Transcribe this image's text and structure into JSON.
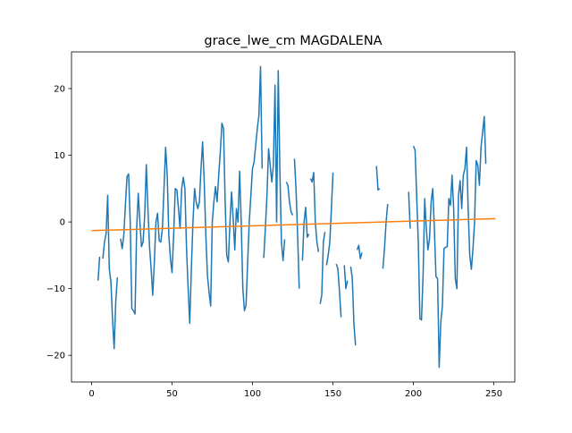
{
  "chart_data": {
    "type": "line",
    "title": "grace_lwe_cm MAGDALENA",
    "xlabel": "",
    "ylabel": "",
    "xlim": [
      -12.5,
      263
    ],
    "ylim": [
      -24,
      25.5
    ],
    "xticks": [
      0,
      50,
      100,
      150,
      200,
      250
    ],
    "yticks": [
      -20,
      -10,
      0,
      10,
      20
    ],
    "grid": false,
    "legend": "none",
    "series": [
      {
        "color": "#1f77b4",
        "segments": [
          [
            [
              4,
              -8.8
            ],
            [
              5,
              -5.2
            ]
          ],
          [
            [
              7,
              -5.5
            ],
            [
              8,
              -3
            ],
            [
              9,
              -1.8
            ],
            [
              10,
              4
            ],
            [
              11,
              -7
            ],
            [
              12,
              -9
            ],
            [
              13,
              -14.5
            ],
            [
              14,
              -19
            ],
            [
              15,
              -12
            ],
            [
              16,
              -8.3
            ]
          ],
          [
            [
              18,
              -2.5
            ],
            [
              19,
              -4
            ],
            [
              20,
              -2
            ],
            [
              21,
              2.5
            ],
            [
              22,
              6.8
            ],
            [
              23,
              7.2
            ],
            [
              24,
              0
            ],
            [
              25,
              -13
            ],
            [
              26,
              -13.3
            ],
            [
              27,
              -13.8
            ],
            [
              28,
              -1
            ],
            [
              29,
              4.3
            ],
            [
              30,
              0
            ],
            [
              31,
              -3.7
            ],
            [
              32,
              -3
            ],
            [
              33,
              1
            ],
            [
              34,
              8.6
            ],
            [
              35,
              2
            ],
            [
              36,
              -3.7
            ],
            [
              37,
              -7
            ],
            [
              38,
              -11
            ],
            [
              39,
              -6
            ],
            [
              40,
              0
            ],
            [
              41,
              1.3
            ],
            [
              42,
              -2.8
            ],
            [
              43,
              -3
            ],
            [
              44,
              -1
            ],
            [
              45,
              5
            ],
            [
              46,
              11.2
            ],
            [
              47,
              7
            ],
            [
              48,
              -2
            ],
            [
              49,
              -5.5
            ],
            [
              50,
              -7.6
            ],
            [
              51,
              -2
            ],
            [
              52,
              5
            ],
            [
              53,
              4.8
            ],
            [
              54,
              2
            ],
            [
              55,
              -1
            ],
            [
              56,
              5
            ],
            [
              57,
              6.7
            ],
            [
              58,
              5
            ],
            [
              59,
              -4
            ],
            [
              60,
              -10
            ],
            [
              61,
              -15.2
            ],
            [
              62,
              -7
            ],
            [
              63,
              0
            ],
            [
              64,
              5
            ],
            [
              65,
              3
            ],
            [
              66,
              2
            ],
            [
              67,
              3
            ],
            [
              68,
              8
            ],
            [
              69,
              12
            ],
            [
              70,
              6
            ],
            [
              71,
              -2
            ],
            [
              72,
              -8
            ],
            [
              73,
              -10.5
            ],
            [
              74,
              -12.6
            ],
            [
              75,
              0
            ],
            [
              76,
              3
            ],
            [
              77,
              5.3
            ],
            [
              78,
              3
            ],
            [
              79,
              7
            ],
            [
              80,
              10.5
            ],
            [
              81,
              14.8
            ],
            [
              82,
              14
            ],
            [
              83,
              3
            ],
            [
              84,
              -5
            ],
            [
              85,
              -6
            ],
            [
              86,
              0
            ],
            [
              87,
              4.5
            ],
            [
              88,
              0.5
            ],
            [
              89,
              -4.2
            ],
            [
              90,
              2
            ],
            [
              91,
              0
            ],
            [
              92,
              7.6
            ],
            [
              93,
              0
            ],
            [
              94,
              -10
            ],
            [
              95,
              -13.3
            ],
            [
              96,
              -12.5
            ],
            [
              97,
              -6
            ],
            [
              98,
              0
            ],
            [
              99,
              4
            ],
            [
              100,
              8
            ],
            [
              101,
              9
            ],
            [
              102,
              11.5
            ],
            [
              103,
              14
            ],
            [
              104,
              16
            ],
            [
              105,
              23.3
            ],
            [
              106,
              8
            ]
          ],
          [
            [
              107,
              -5.4
            ],
            [
              108,
              -1
            ],
            [
              109,
              4
            ],
            [
              110,
              11
            ],
            [
              111,
              8.5
            ],
            [
              112,
              6
            ],
            [
              113,
              8.5
            ],
            [
              114,
              20.5
            ],
            [
              115,
              0
            ],
            [
              116,
              22.7
            ],
            [
              117,
              8
            ],
            [
              118,
              -3
            ],
            [
              119,
              -5.8
            ],
            [
              120,
              -2.6
            ]
          ],
          [
            [
              121,
              6
            ],
            [
              122,
              5.5
            ],
            [
              123,
              3
            ],
            [
              124,
              1.5
            ],
            [
              125,
              1
            ]
          ],
          [
            [
              126,
              9.5
            ],
            [
              127,
              5
            ],
            [
              128,
              -2
            ],
            [
              129,
              -10
            ]
          ],
          [
            [
              131,
              -5.8
            ],
            [
              132,
              0
            ],
            [
              133,
              2.2
            ],
            [
              134,
              -2.3
            ],
            [
              135,
              -1.8
            ]
          ],
          [
            [
              136,
              6.5
            ],
            [
              137,
              6
            ],
            [
              138,
              7.4
            ],
            [
              139,
              0
            ],
            [
              140,
              -3
            ],
            [
              141,
              -4.5
            ]
          ],
          [
            [
              142,
              -12.3
            ],
            [
              143,
              -11
            ],
            [
              144,
              -3
            ],
            [
              145,
              -1.5
            ]
          ],
          [
            [
              146,
              -6.5
            ],
            [
              147,
              -5
            ],
            [
              148,
              -3
            ],
            [
              149,
              2
            ],
            [
              150,
              7.4
            ]
          ],
          [
            [
              152,
              -6.3
            ],
            [
              153,
              -7
            ],
            [
              154,
              -10.3
            ],
            [
              155,
              -14.3
            ]
          ],
          [
            [
              157,
              -6.5
            ],
            [
              158,
              -10
            ],
            [
              159,
              -8.8
            ]
          ],
          [
            [
              161,
              -6.7
            ],
            [
              162,
              -8.5
            ],
            [
              163,
              -15.3
            ],
            [
              164,
              -18.5
            ]
          ],
          [
            [
              165,
              -4.2
            ],
            [
              166,
              -3.5
            ],
            [
              167,
              -5.5
            ],
            [
              168,
              -4.6
            ]
          ],
          [
            [
              177,
              8.4
            ],
            [
              178,
              4.8
            ],
            [
              179,
              5
            ]
          ],
          [
            [
              181,
              -7
            ],
            [
              182,
              -4
            ],
            [
              183,
              0
            ],
            [
              184,
              2.7
            ]
          ],
          [
            [
              197,
              4.5
            ],
            [
              198,
              -1
            ]
          ],
          [
            [
              200,
              11.4
            ],
            [
              201,
              10.8
            ],
            [
              202,
              4
            ],
            [
              203,
              -3
            ],
            [
              204,
              -14.5
            ],
            [
              205,
              -14.7
            ],
            [
              206,
              -8
            ],
            [
              207,
              3.5
            ],
            [
              208,
              -1
            ],
            [
              209,
              -4.2
            ],
            [
              210,
              -2.5
            ],
            [
              211,
              3
            ],
            [
              212,
              5
            ],
            [
              213,
              -1
            ],
            [
              214,
              -8.2
            ],
            [
              215,
              -8.5
            ],
            [
              216,
              -21.8
            ],
            [
              217,
              -15
            ],
            [
              218,
              -12.6
            ],
            [
              219,
              -4
            ],
            [
              220,
              -3.8
            ],
            [
              221,
              -3.7
            ],
            [
              222,
              3.5
            ],
            [
              223,
              2.5
            ],
            [
              224,
              7
            ],
            [
              225,
              2
            ],
            [
              226,
              -8.5
            ],
            [
              227,
              -10
            ],
            [
              228,
              4
            ],
            [
              229,
              6.2
            ],
            [
              230,
              2
            ],
            [
              231,
              7
            ],
            [
              232,
              8
            ],
            [
              233,
              11.2
            ],
            [
              234,
              2
            ],
            [
              235,
              -5
            ],
            [
              236,
              -7.1
            ],
            [
              237,
              -4
            ],
            [
              238,
              0
            ],
            [
              239,
              9.2
            ],
            [
              240,
              8.5
            ],
            [
              241,
              5.5
            ],
            [
              242,
              11.2
            ],
            [
              243,
              13.5
            ],
            [
              244,
              15.8
            ],
            [
              245,
              8.7
            ]
          ]
        ]
      },
      {
        "color": "#ff7f0e",
        "segments": [
          [
            [
              0,
              -1.3
            ],
            [
              251,
              0.5
            ]
          ]
        ]
      }
    ]
  }
}
